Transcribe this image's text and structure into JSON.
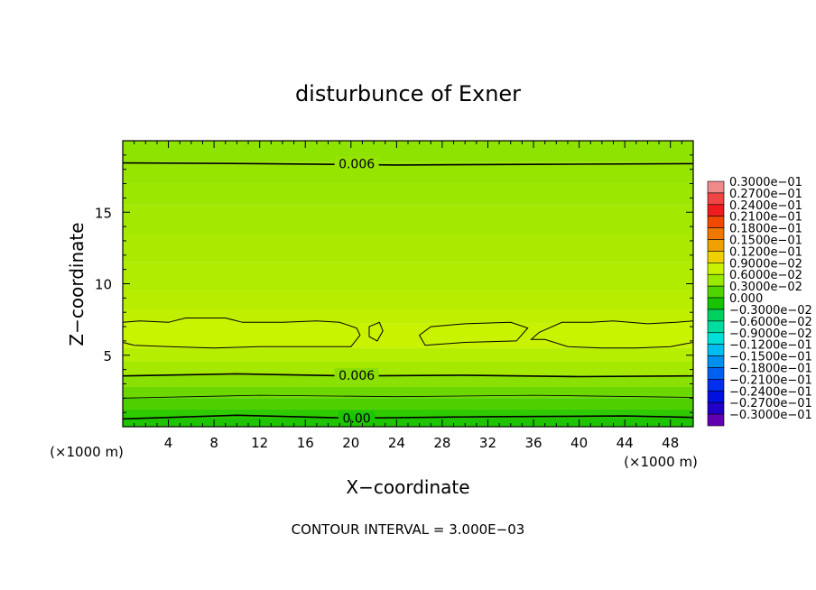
{
  "chart_data": {
    "type": "heatmap",
    "title": "disturbunce of Exner",
    "xlabel": "X−coordinate",
    "ylabel": "Z−coordinate",
    "x_unit_label": "(×1000 m)",
    "x_unit_label_right": "(×1000 m)",
    "xlim": [
      0,
      50
    ],
    "ylim": [
      0,
      20
    ],
    "x_ticks": [
      4,
      8,
      12,
      16,
      20,
      24,
      28,
      32,
      36,
      40,
      44,
      48
    ],
    "y_ticks": [
      5,
      10,
      15
    ],
    "footer": "CONTOUR INTERVAL = 3.000E−03",
    "contour_labels": [
      "0.006",
      "0.006",
      "0.00"
    ],
    "bands": [
      {
        "z_top": 20.0,
        "color": "#8fe300"
      },
      {
        "z_top": 18.5,
        "color": "#95e500"
      },
      {
        "z_top": 17.0,
        "color": "#9be700"
      },
      {
        "z_top": 15.5,
        "color": "#a2e800"
      },
      {
        "z_top": 13.5,
        "color": "#a9ea00"
      },
      {
        "z_top": 11.5,
        "color": "#b0ec00"
      },
      {
        "z_top": 9.5,
        "color": "#b7ee00"
      },
      {
        "z_top": 8.2,
        "color": "#c0f000"
      },
      {
        "z_top": 7.2,
        "color": "#c8f200"
      },
      {
        "z_top": 5.5,
        "color": "#b6ee00"
      },
      {
        "z_top": 4.6,
        "color": "#a6e900"
      },
      {
        "z_top": 3.6,
        "color": "#8ae000"
      },
      {
        "z_top": 2.8,
        "color": "#6cd800"
      },
      {
        "z_top": 2.0,
        "color": "#4ed000"
      },
      {
        "z_top": 1.2,
        "color": "#30ca00"
      },
      {
        "z_top": 0.6,
        "color": "#1ec400"
      }
    ],
    "contours": [
      {
        "points": [
          [
            0,
            18.45
          ],
          [
            12,
            18.4
          ],
          [
            24,
            18.3
          ],
          [
            36,
            18.35
          ],
          [
            50,
            18.4
          ]
        ],
        "width": 1.6
      },
      {
        "points": [
          [
            0,
            3.55
          ],
          [
            10,
            3.7
          ],
          [
            20,
            3.55
          ],
          [
            30,
            3.6
          ],
          [
            40,
            3.5
          ],
          [
            50,
            3.55
          ]
        ],
        "width": 1.6
      },
      {
        "points": [
          [
            0,
            2.0
          ],
          [
            12,
            2.2
          ],
          [
            24,
            2.1
          ],
          [
            36,
            2.2
          ],
          [
            50,
            2.05
          ]
        ],
        "width": 0.8
      },
      {
        "points": [
          [
            0,
            0.55
          ],
          [
            10,
            0.8
          ],
          [
            20,
            0.6
          ],
          [
            32,
            0.7
          ],
          [
            44,
            0.75
          ],
          [
            50,
            0.65
          ]
        ],
        "width": 1.6
      }
    ],
    "closed_contours": [
      {
        "points": [
          [
            0,
            7.3
          ],
          [
            1.5,
            7.4
          ],
          [
            4,
            7.3
          ],
          [
            5.5,
            7.6
          ],
          [
            9,
            7.6
          ],
          [
            10.5,
            7.3
          ],
          [
            14,
            7.3
          ],
          [
            17,
            7.4
          ],
          [
            19,
            7.3
          ],
          [
            20.5,
            6.9
          ],
          [
            20.8,
            6.4
          ],
          [
            20,
            5.6
          ],
          [
            16,
            5.6
          ],
          [
            12,
            5.6
          ],
          [
            8,
            5.5
          ],
          [
            4,
            5.6
          ],
          [
            1,
            5.7
          ],
          [
            0,
            5.9
          ]
        ]
      },
      {
        "points": [
          [
            21.6,
            7.0
          ],
          [
            22.5,
            7.3
          ],
          [
            22.8,
            6.7
          ],
          [
            22.3,
            6.0
          ],
          [
            21.6,
            6.3
          ]
        ]
      },
      {
        "points": [
          [
            26,
            6.4
          ],
          [
            27,
            7.0
          ],
          [
            30,
            7.2
          ],
          [
            34,
            7.3
          ],
          [
            35.5,
            6.9
          ],
          [
            34.5,
            6.0
          ],
          [
            30,
            5.9
          ],
          [
            26.5,
            5.7
          ]
        ]
      },
      {
        "points": [
          [
            36.5,
            6.6
          ],
          [
            38.5,
            7.3
          ],
          [
            41,
            7.3
          ],
          [
            43,
            7.4
          ],
          [
            46,
            7.2
          ],
          [
            48.5,
            7.3
          ],
          [
            50,
            7.4
          ],
          [
            50,
            5.9
          ],
          [
            48,
            5.6
          ],
          [
            45,
            5.5
          ],
          [
            42,
            5.5
          ],
          [
            39,
            5.6
          ],
          [
            37,
            6.1
          ],
          [
            35.8,
            6.1
          ]
        ]
      }
    ],
    "colorbar": {
      "labels": [
        "0.3000e−01",
        "0.2700e−01",
        "0.2400e−01",
        "0.2100e−01",
        "0.1800e−01",
        "0.1500e−01",
        "0.1200e−01",
        "0.9000e−02",
        "0.6000e−02",
        "0.3000e−02",
        "0.000",
        "−0.3000e−02",
        "−0.6000e−02",
        "−0.9000e−02",
        "−0.1200e−01",
        "−0.1500e−01",
        "−0.1800e−01",
        "−0.2100e−01",
        "−0.2400e−01",
        "−0.2700e−01",
        "−0.3000e−01"
      ],
      "colors": [
        "#f08a8a",
        "#f04545",
        "#ee1c1c",
        "#f04a00",
        "#f07800",
        "#f0a000",
        "#f0d000",
        "#c8f200",
        "#9be800",
        "#50d400",
        "#18c400",
        "#00d060",
        "#00dca0",
        "#00e0d8",
        "#00bcf0",
        "#0090f0",
        "#0060f0",
        "#0030ee",
        "#0010e0",
        "#2000c8",
        "#6000b0"
      ]
    }
  }
}
